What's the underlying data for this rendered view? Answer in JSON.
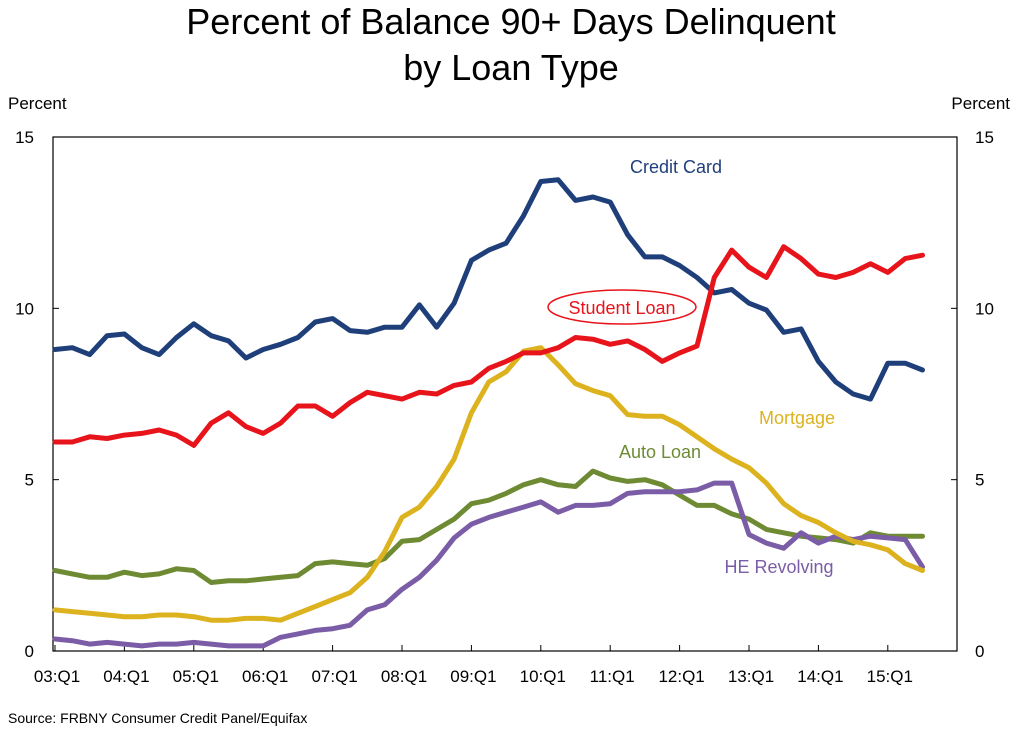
{
  "chart_data": {
    "type": "line",
    "title": [
      "Percent of Balance 90+ Days Delinquent",
      "by Loan Type"
    ],
    "ylabel_left": "Percent",
    "ylabel_right": "Percent",
    "ylim": [
      0,
      15
    ],
    "yticks": [
      0,
      5,
      10,
      15
    ],
    "x_start_year": 2003,
    "n_points": 51,
    "xticks": [
      {
        "label": "03:Q1",
        "index": 0
      },
      {
        "label": "04:Q1",
        "index": 4
      },
      {
        "label": "05:Q1",
        "index": 8
      },
      {
        "label": "06:Q1",
        "index": 12
      },
      {
        "label": "07:Q1",
        "index": 16
      },
      {
        "label": "08:Q1",
        "index": 20
      },
      {
        "label": "09:Q1",
        "index": 24
      },
      {
        "label": "10:Q1",
        "index": 28
      },
      {
        "label": "11:Q1",
        "index": 32
      },
      {
        "label": "12:Q1",
        "index": 36
      },
      {
        "label": "13:Q1",
        "index": 40
      },
      {
        "label": "14:Q1",
        "index": 44
      },
      {
        "label": "15:Q1",
        "index": 48
      }
    ],
    "series": [
      {
        "name": "Credit Card",
        "color": "#1F3F7A",
        "values": [
          8.8,
          8.85,
          8.65,
          9.2,
          9.25,
          8.85,
          8.65,
          9.15,
          9.55,
          9.2,
          9.05,
          8.55,
          8.8,
          8.95,
          9.15,
          9.6,
          9.7,
          9.35,
          9.3,
          9.45,
          9.45,
          10.1,
          9.45,
          10.15,
          11.4,
          11.7,
          11.9,
          12.7,
          13.7,
          13.75,
          13.15,
          13.25,
          13.1,
          12.15,
          11.5,
          11.5,
          11.25,
          10.9,
          10.45,
          10.55,
          10.15,
          9.95,
          9.3,
          9.4,
          8.45,
          7.85,
          7.5,
          7.35,
          8.4,
          8.4,
          8.2
        ],
        "label_pos": [
          676,
          173
        ],
        "label_circled": false
      },
      {
        "name": "Student Loan",
        "color": "#E8141B",
        "values": [
          6.1,
          6.1,
          6.25,
          6.2,
          6.3,
          6.35,
          6.45,
          6.3,
          6.0,
          6.65,
          6.95,
          6.55,
          6.35,
          6.65,
          7.15,
          7.15,
          6.85,
          7.25,
          7.55,
          7.45,
          7.35,
          7.55,
          7.5,
          7.75,
          7.85,
          8.25,
          8.45,
          8.7,
          8.7,
          8.85,
          9.15,
          9.1,
          8.95,
          9.05,
          8.8,
          8.45,
          8.7,
          8.9,
          10.9,
          11.7,
          11.2,
          10.9,
          11.8,
          11.45,
          11.0,
          10.9,
          11.05,
          11.3,
          11.05,
          11.45,
          11.55
        ],
        "label_pos": [
          622,
          314
        ],
        "label_circled": true
      },
      {
        "name": "Mortgage",
        "color": "#DDB21F",
        "values": [
          1.2,
          1.15,
          1.1,
          1.05,
          1.0,
          1.0,
          1.05,
          1.05,
          1.0,
          0.9,
          0.9,
          0.95,
          0.95,
          0.9,
          1.1,
          1.3,
          1.5,
          1.7,
          2.15,
          2.9,
          3.9,
          4.2,
          4.8,
          5.6,
          6.95,
          7.85,
          8.15,
          8.75,
          8.85,
          8.35,
          7.8,
          7.6,
          7.45,
          6.9,
          6.85,
          6.85,
          6.6,
          6.25,
          5.9,
          5.6,
          5.35,
          4.9,
          4.3,
          3.95,
          3.75,
          3.45,
          3.2,
          3.1,
          2.95,
          2.55,
          2.35
        ],
        "label_pos": [
          797,
          424
        ],
        "label_circled": false
      },
      {
        "name": "Auto Loan",
        "color": "#6E8B34",
        "values": [
          2.35,
          2.25,
          2.15,
          2.15,
          2.3,
          2.2,
          2.25,
          2.4,
          2.35,
          2.0,
          2.05,
          2.05,
          2.1,
          2.15,
          2.2,
          2.55,
          2.6,
          2.55,
          2.5,
          2.7,
          3.2,
          3.25,
          3.55,
          3.85,
          4.3,
          4.4,
          4.6,
          4.85,
          5.0,
          4.85,
          4.8,
          5.25,
          5.05,
          4.95,
          5.0,
          4.85,
          4.55,
          4.25,
          4.25,
          4.0,
          3.85,
          3.55,
          3.45,
          3.35,
          3.3,
          3.25,
          3.15,
          3.45,
          3.35,
          3.35,
          3.35
        ],
        "label_pos": [
          660,
          458
        ],
        "label_circled": false
      },
      {
        "name": "HE Revolving",
        "color": "#7B5CA7",
        "values": [
          0.35,
          0.3,
          0.2,
          0.25,
          0.2,
          0.15,
          0.2,
          0.2,
          0.25,
          0.2,
          0.15,
          0.15,
          0.15,
          0.4,
          0.5,
          0.6,
          0.65,
          0.75,
          1.2,
          1.35,
          1.8,
          2.15,
          2.65,
          3.3,
          3.7,
          3.9,
          4.05,
          4.2,
          4.35,
          4.05,
          4.25,
          4.25,
          4.3,
          4.6,
          4.65,
          4.65,
          4.65,
          4.7,
          4.9,
          4.9,
          3.4,
          3.15,
          3.0,
          3.45,
          3.15,
          3.35,
          3.25,
          3.35,
          3.3,
          3.25,
          2.45
        ],
        "label_pos": [
          779,
          573
        ],
        "label_circled": false
      }
    ]
  },
  "source": "Source: FRBNY Consumer Credit Panel/Equifax"
}
